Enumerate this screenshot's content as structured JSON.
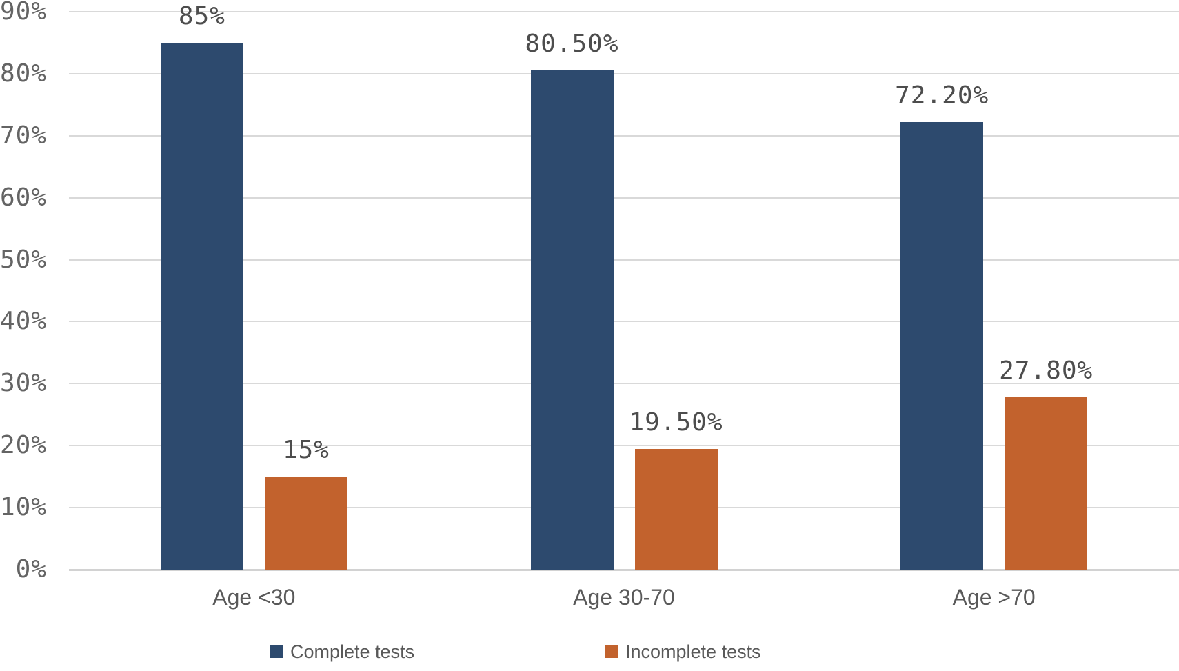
{
  "chart_data": {
    "type": "bar",
    "categories": [
      "Age <30",
      "Age 30-70",
      "Age >70"
    ],
    "series": [
      {
        "name": "Complete tests",
        "color": "#2d4a6e",
        "values": [
          85,
          80.5,
          72.2
        ],
        "data_labels": [
          "85%",
          "80.50%",
          "72.20%"
        ]
      },
      {
        "name": "Incomplete tests",
        "color": "#c2622d",
        "values": [
          15,
          19.5,
          27.8
        ],
        "data_labels": [
          "15%",
          "19.50%",
          "27.80%"
        ]
      }
    ],
    "title": "",
    "xlabel": "",
    "ylabel": "",
    "ylim": [
      0,
      90
    ],
    "ytick_step": 10,
    "ytick_labels": [
      "0%",
      "10%",
      "20%",
      "30%",
      "40%",
      "50%",
      "60%",
      "70%",
      "80%",
      "90%"
    ],
    "grid": true,
    "legend_position": "bottom"
  },
  "colors": {
    "complete_bar": "#2d4a6e",
    "incomplete_bar": "#c2622d",
    "gridline": "#d9d9d9",
    "axis_text": "#646464",
    "data_label_text": "#4d4d4d",
    "category_text": "#595959",
    "background": "#ffffff"
  }
}
